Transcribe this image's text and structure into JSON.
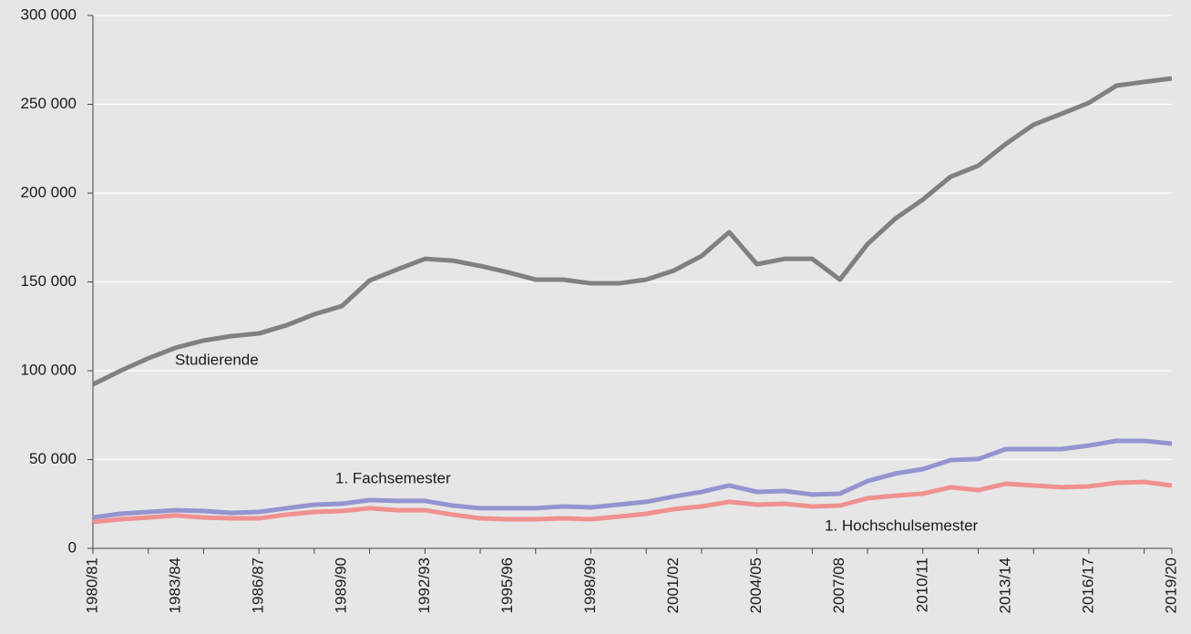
{
  "chart_data": {
    "type": "line",
    "categories": [
      "1980/81",
      null,
      null,
      "1983/84",
      null,
      null,
      "1986/87",
      null,
      null,
      "1989/90",
      null,
      null,
      "1992/93",
      null,
      null,
      "1995/96",
      null,
      null,
      "1998/99",
      null,
      null,
      "2001/02",
      null,
      null,
      "2004/05",
      null,
      null,
      "2007/08",
      null,
      null,
      "2010/11",
      null,
      null,
      "2013/14",
      null,
      null,
      "2016/17",
      null,
      null,
      "2019/20"
    ],
    "series": [
      {
        "name": "Studierende",
        "color": "#808080",
        "values": [
          92300,
          100000,
          107000,
          113000,
          117000,
          119500,
          121000,
          125600,
          131800,
          136400,
          150800,
          157000,
          163000,
          162000,
          159000,
          155400,
          151300,
          151300,
          149200,
          149200,
          151300,
          156400,
          164600,
          178000,
          160000,
          163000,
          163000,
          151300,
          171300,
          185600,
          196400,
          209200,
          215400,
          227700,
          238500,
          244600,
          250800,
          260500,
          262600,
          264600
        ]
      },
      {
        "name": "1. Fachsemester",
        "color": "#9494d0",
        "values": [
          17400,
          19500,
          20500,
          21500,
          21000,
          20000,
          20500,
          22600,
          24600,
          25100,
          27200,
          26700,
          26700,
          24100,
          22600,
          22600,
          22600,
          23600,
          23100,
          24600,
          26200,
          29200,
          31800,
          35400,
          31800,
          32300,
          30300,
          30800,
          37900,
          42100,
          44600,
          49700,
          50300,
          55900,
          55900,
          55900,
          57900,
          60500,
          60500,
          59000
        ]
      },
      {
        "name": "1. Hochschulsemester",
        "color": "#f09090",
        "values": [
          14900,
          16400,
          17400,
          18500,
          17400,
          16900,
          16900,
          19000,
          20500,
          21000,
          22600,
          21500,
          21500,
          19000,
          16900,
          16400,
          16400,
          16900,
          16400,
          17900,
          19500,
          22100,
          23600,
          26200,
          24600,
          25100,
          23600,
          24100,
          28200,
          29700,
          30800,
          34400,
          32800,
          36400,
          35400,
          34400,
          34900,
          36900,
          37400,
          35400
        ]
      }
    ],
    "ylim": [
      0,
      300000
    ],
    "yticks": [
      0,
      {
        "value": 50000,
        "label": "50 000"
      },
      {
        "value": 100000,
        "label": "100 000"
      },
      {
        "value": 150000,
        "label": "150 000"
      },
      {
        "value": 200000,
        "label": "200 000"
      },
      {
        "value": 250000,
        "label": "250 000"
      },
      {
        "value": 300000,
        "label": "300 000"
      }
    ],
    "grid": true
  }
}
